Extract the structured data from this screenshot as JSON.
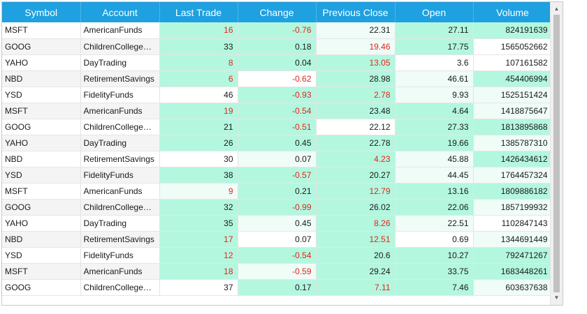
{
  "columns": [
    "Symbol",
    "Account",
    "Last Trade",
    "Change",
    "Previous Close",
    "Open",
    "Volume"
  ],
  "rows": [
    {
      "symbol": "MSFT",
      "account": "AmericanFunds",
      "last_trade": "16",
      "change": "-0.76",
      "prev_close": "22.31",
      "open": "27.11",
      "volume": "824191639",
      "bg": [
        "g",
        "g",
        "l",
        "g",
        "g"
      ],
      "red": [
        true,
        true,
        false,
        false,
        false
      ]
    },
    {
      "symbol": "GOOG",
      "account": "ChildrenCollegeSa...",
      "last_trade": "33",
      "change": "0.18",
      "prev_close": "19.46",
      "open": "17.75",
      "volume": "1565052662",
      "bg": [
        "g",
        "g",
        "l",
        "g",
        "w"
      ],
      "red": [
        false,
        false,
        true,
        false,
        false
      ]
    },
    {
      "symbol": "YAHO",
      "account": "DayTrading",
      "last_trade": "8",
      "change": "0.04",
      "prev_close": "13.05",
      "open": "3.6",
      "volume": "107161582",
      "bg": [
        "g",
        "g",
        "g",
        "w",
        "w"
      ],
      "red": [
        true,
        false,
        true,
        false,
        false
      ]
    },
    {
      "symbol": "NBD",
      "account": "RetirementSavings",
      "last_trade": "6",
      "change": "-0.62",
      "prev_close": "28.98",
      "open": "46.61",
      "volume": "454406994",
      "bg": [
        "g",
        "w",
        "g",
        "l",
        "g"
      ],
      "red": [
        true,
        true,
        false,
        false,
        false
      ]
    },
    {
      "symbol": "YSD",
      "account": "FidelityFunds",
      "last_trade": "46",
      "change": "-0.93",
      "prev_close": "2.78",
      "open": "9.93",
      "volume": "1525151424",
      "bg": [
        "w",
        "g",
        "g",
        "l",
        "l"
      ],
      "red": [
        false,
        true,
        true,
        false,
        false
      ]
    },
    {
      "symbol": "MSFT",
      "account": "AmericanFunds",
      "last_trade": "19",
      "change": "-0.54",
      "prev_close": "23.48",
      "open": "4.64",
      "volume": "1418875647",
      "bg": [
        "g",
        "g",
        "g",
        "g",
        "l"
      ],
      "red": [
        true,
        true,
        false,
        false,
        false
      ]
    },
    {
      "symbol": "GOOG",
      "account": "ChildrenCollegeSa...",
      "last_trade": "21",
      "change": "-0.51",
      "prev_close": "22.12",
      "open": "27.33",
      "volume": "1813895868",
      "bg": [
        "g",
        "g",
        "w",
        "g",
        "g"
      ],
      "red": [
        false,
        true,
        false,
        false,
        false
      ]
    },
    {
      "symbol": "YAHO",
      "account": "DayTrading",
      "last_trade": "26",
      "change": "0.45",
      "prev_close": "22.78",
      "open": "19.66",
      "volume": "1385787310",
      "bg": [
        "g",
        "g",
        "g",
        "g",
        "l"
      ],
      "red": [
        false,
        false,
        false,
        false,
        false
      ]
    },
    {
      "symbol": "NBD",
      "account": "RetirementSavings",
      "last_trade": "30",
      "change": "0.07",
      "prev_close": "4.23",
      "open": "45.88",
      "volume": "1426434612",
      "bg": [
        "w",
        "l",
        "g",
        "l",
        "g"
      ],
      "red": [
        false,
        false,
        true,
        false,
        false
      ]
    },
    {
      "symbol": "YSD",
      "account": "FidelityFunds",
      "last_trade": "38",
      "change": "-0.57",
      "prev_close": "20.27",
      "open": "44.45",
      "volume": "1764457324",
      "bg": [
        "g",
        "g",
        "g",
        "l",
        "l"
      ],
      "red": [
        false,
        true,
        false,
        false,
        false
      ]
    },
    {
      "symbol": "MSFT",
      "account": "AmericanFunds",
      "last_trade": "9",
      "change": "0.21",
      "prev_close": "12.79",
      "open": "13.16",
      "volume": "1809886182",
      "bg": [
        "l",
        "g",
        "g",
        "g",
        "g"
      ],
      "red": [
        true,
        false,
        true,
        false,
        false
      ]
    },
    {
      "symbol": "GOOG",
      "account": "ChildrenCollegeSa...",
      "last_trade": "32",
      "change": "-0.99",
      "prev_close": "26.02",
      "open": "22.06",
      "volume": "1857199932",
      "bg": [
        "g",
        "g",
        "g",
        "g",
        "l"
      ],
      "red": [
        false,
        true,
        false,
        false,
        false
      ]
    },
    {
      "symbol": "YAHO",
      "account": "DayTrading",
      "last_trade": "35",
      "change": "0.45",
      "prev_close": "8.26",
      "open": "22.51",
      "volume": "1102847143",
      "bg": [
        "g",
        "l",
        "g",
        "l",
        "w"
      ],
      "red": [
        false,
        false,
        true,
        false,
        false
      ]
    },
    {
      "symbol": "NBD",
      "account": "RetirementSavings",
      "last_trade": "17",
      "change": "0.07",
      "prev_close": "12.51",
      "open": "0.69",
      "volume": "1344691449",
      "bg": [
        "g",
        "w",
        "g",
        "w",
        "l"
      ],
      "red": [
        true,
        false,
        true,
        false,
        false
      ]
    },
    {
      "symbol": "YSD",
      "account": "FidelityFunds",
      "last_trade": "12",
      "change": "-0.54",
      "prev_close": "20.6",
      "open": "10.27",
      "volume": "792471267",
      "bg": [
        "g",
        "g",
        "g",
        "g",
        "g"
      ],
      "red": [
        true,
        true,
        false,
        false,
        false
      ]
    },
    {
      "symbol": "MSFT",
      "account": "AmericanFunds",
      "last_trade": "18",
      "change": "-0.59",
      "prev_close": "29.24",
      "open": "33.75",
      "volume": "1683448261",
      "bg": [
        "g",
        "l",
        "g",
        "g",
        "g"
      ],
      "red": [
        true,
        true,
        false,
        false,
        false
      ]
    },
    {
      "symbol": "GOOG",
      "account": "ChildrenCollegeSa...",
      "last_trade": "37",
      "change": "0.17",
      "prev_close": "7.11",
      "open": "7.46",
      "volume": "603637638",
      "bg": [
        "w",
        "g",
        "g",
        "g",
        "l"
      ],
      "red": [
        false,
        false,
        true,
        false,
        false
      ]
    }
  ],
  "colors": {
    "header_bg": "#1fa0e0",
    "cell_green": "#b4f7df",
    "cell_light": "#effcf8",
    "negative_text": "#e8231b"
  },
  "icons": {
    "scroll_up": "scroll-up-arrow-icon",
    "scroll_down": "scroll-down-arrow-icon"
  }
}
